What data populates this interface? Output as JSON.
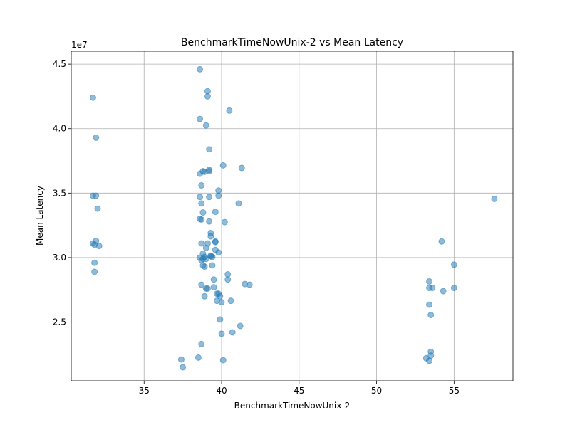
{
  "chart_data": {
    "type": "scatter",
    "title": "BenchmarkTimeNowUnix-2 vs Mean Latency",
    "xlabel": "BenchmarkTimeNowUnix-2",
    "ylabel": "Mean Latency",
    "offset_label": "1e7",
    "xlim": [
      30.3,
      58.8
    ],
    "ylim": [
      20450000,
      46000000
    ],
    "x_ticks": [
      35,
      40,
      45,
      50,
      55
    ],
    "x_tick_labels": [
      "35",
      "40",
      "45",
      "50",
      "55"
    ],
    "y_ticks": [
      25000000,
      30000000,
      35000000,
      40000000,
      45000000
    ],
    "y_tick_labels": [
      "2.5",
      "3.0",
      "3.5",
      "4.0",
      "4.5"
    ],
    "grid": true,
    "point_color": "#1f77b4",
    "x": [
      31.7,
      31.9,
      31.9,
      31.7,
      32.0,
      31.7,
      31.8,
      31.9,
      32.1,
      31.8,
      31.8,
      37.4,
      37.5,
      38.5,
      38.6,
      38.6,
      38.6,
      38.7,
      38.6,
      38.7,
      38.6,
      38.7,
      38.8,
      38.8,
      38.9,
      39.0,
      39.1,
      39.1,
      39.2,
      39.2,
      39.2,
      39.2,
      39.2,
      39.3,
      39.3,
      39.3,
      39.4,
      39.5,
      39.5,
      39.6,
      39.6,
      39.6,
      39.7,
      39.7,
      39.8,
      39.8,
      39.8,
      39.9,
      39.9,
      40.0,
      40.0,
      40.1,
      40.1,
      40.2,
      40.4,
      40.4,
      40.5,
      40.6,
      40.7,
      41.1,
      41.2,
      41.3,
      41.5,
      41.8,
      38.7,
      38.8,
      38.9,
      39.0,
      39.1,
      38.8,
      38.7,
      38.6,
      38.8,
      38.9,
      39.0,
      39.1,
      38.9,
      39.0,
      39.3,
      39.4,
      38.7,
      38.7,
      39.6,
      39.8,
      53.2,
      53.4,
      53.4,
      53.5,
      53.5,
      53.4,
      53.4,
      53.5,
      53.6,
      54.2,
      54.3,
      55.0,
      55.0,
      57.6
    ],
    "y": [
      42400000,
      39300000,
      34800000,
      34800000,
      33800000,
      31100000,
      31000000,
      31300000,
      30900000,
      29600000,
      28900000,
      22100000,
      21500000,
      22250000,
      44600000,
      40750000,
      36500000,
      35600000,
      34700000,
      34200000,
      33000000,
      32950000,
      33500000,
      36700000,
      36650000,
      40250000,
      42900000,
      42500000,
      38400000,
      36800000,
      36700000,
      34700000,
      32800000,
      31900000,
      31650000,
      30150000,
      30050000,
      28300000,
      27700000,
      33550000,
      31250000,
      30600000,
      27200000,
      26650000,
      35200000,
      34800000,
      30400000,
      27000000,
      25200000,
      26550000,
      24100000,
      22050000,
      37150000,
      32750000,
      28700000,
      28300000,
      41400000,
      26650000,
      24200000,
      34200000,
      24700000,
      36950000,
      27950000,
      27900000,
      31100000,
      30300000,
      30050000,
      30750000,
      31100000,
      29900000,
      29800000,
      30000000,
      29400000,
      29300000,
      27600000,
      27600000,
      27000000,
      29900000,
      30100000,
      29400000,
      27900000,
      23300000,
      31200000,
      27200000,
      22200000,
      28150000,
      26350000,
      25550000,
      22700000,
      22000000,
      27650000,
      22400000,
      27650000,
      31250000,
      27400000,
      29450000,
      27650000,
      34550000
    ]
  }
}
